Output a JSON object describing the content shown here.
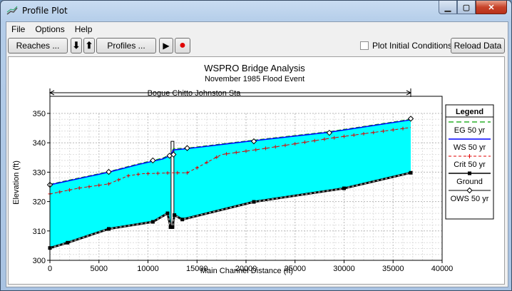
{
  "window": {
    "title": "Profile Plot"
  },
  "menu": {
    "file": "File",
    "options": "Options",
    "help": "Help"
  },
  "toolbar": {
    "reaches": "Reaches ...",
    "profiles": "Profiles ...",
    "down_arrow": "⬇",
    "up_arrow": "⬆",
    "play": "▶",
    "record": "●",
    "plot_initial_label": "Plot Initial Conditions",
    "plot_initial_checked": false,
    "reload": "Reload Data"
  },
  "chart_data": {
    "type": "line",
    "title": "WSPRO Bridge Analysis",
    "subtitle": "November 1985 Flood Event",
    "reach_label": "Bogue Chitto Johnston Sta",
    "xlabel": "Main Channel Distance (ft)",
    "ylabel": "Elevation (ft)",
    "xlim": [
      0,
      40000
    ],
    "ylim": [
      300,
      350
    ],
    "xticks": [
      "0",
      "5000",
      "10000",
      "15000",
      "20000",
      "25000",
      "30000",
      "35000",
      "40000"
    ],
    "yticks": [
      "300",
      "310",
      "320",
      "330",
      "340",
      "350"
    ],
    "grid": true,
    "legend_position": "right",
    "legend_title": "Legend",
    "legend": [
      {
        "label": "EG  50 yr",
        "color": "#00a000",
        "style": "dash"
      },
      {
        "label": "WS  50 yr",
        "color": "#0000ff",
        "style": "solid"
      },
      {
        "label": "Crit  50 yr",
        "color": "#e00000",
        "style": "dash-cross"
      },
      {
        "label": "Ground",
        "color": "#000000",
        "style": "solid-square"
      },
      {
        "label": "OWS  50 yr",
        "color": "#000000",
        "style": "diamond"
      }
    ],
    "colors": {
      "water_fill": "#00ffff",
      "eg": "#00a000",
      "ws": "#0000ff",
      "crit": "#e00000",
      "ground": "#000000"
    },
    "series": [
      {
        "name": "EG  50 yr",
        "x": [
          0,
          6000,
          9000,
          11500,
          12300,
          12600,
          14000,
          20000,
          28500,
          36800
        ],
        "y": [
          325.9,
          330.2,
          332.8,
          334.8,
          336.0,
          338.0,
          338.2,
          340.6,
          343.8,
          348.0
        ]
      },
      {
        "name": "WS  50 yr",
        "x": [
          0,
          6000,
          9000,
          11500,
          12300,
          12600,
          14000,
          20000,
          28500,
          36800
        ],
        "y": [
          325.7,
          330.0,
          332.6,
          334.5,
          335.7,
          337.6,
          338.0,
          340.4,
          343.6,
          347.8
        ]
      },
      {
        "name": "Crit  50 yr",
        "x": [
          0,
          3000,
          6000,
          8000,
          9500,
          11000,
          12500,
          14000,
          15000,
          17500,
          22000,
          28500,
          32500,
          36800
        ],
        "y": [
          322.6,
          324.6,
          326.0,
          328.8,
          329.5,
          329.6,
          329.8,
          329.8,
          331.5,
          336.0,
          338.1,
          341.5,
          343.3,
          345.2
        ]
      },
      {
        "name": "Ground",
        "x": [
          0,
          1800,
          6000,
          10500,
          12000,
          12300,
          12500,
          12700,
          13500,
          20800,
          30000,
          36800
        ],
        "y": [
          304.2,
          306.0,
          310.7,
          313.1,
          316.0,
          311.3,
          311.3,
          315.4,
          313.9,
          319.9,
          324.5,
          329.8
        ]
      },
      {
        "name": "OWS  50 yr",
        "x": [
          0,
          6000,
          10500,
          12200,
          12600,
          14000,
          20800,
          28500,
          36800
        ],
        "y": [
          325.7,
          330.1,
          334.0,
          335.6,
          336.0,
          338.2,
          340.5,
          343.4,
          348.2
        ]
      }
    ],
    "bridge_x": 12500
  }
}
